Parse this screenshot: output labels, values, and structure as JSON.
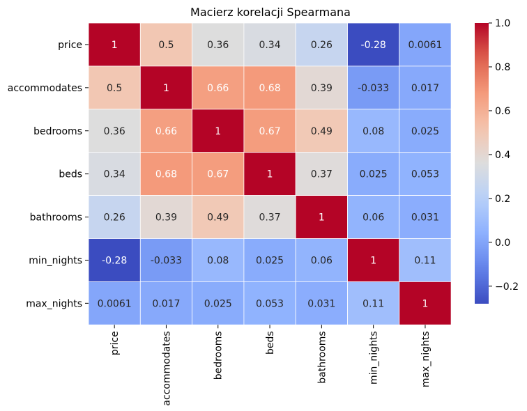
{
  "chart_data": {
    "type": "heatmap",
    "title": "Macierz korelacji Spearmana",
    "row_labels": [
      "price",
      "accommodates",
      "bedrooms",
      "beds",
      "bathrooms",
      "min_nights",
      "max_nights"
    ],
    "col_labels": [
      "price",
      "accommodates",
      "bedrooms",
      "beds",
      "bathrooms",
      "min_nights",
      "max_nights"
    ],
    "values": [
      [
        1,
        0.5,
        0.36,
        0.34,
        0.26,
        -0.28,
        0.0061
      ],
      [
        0.5,
        1,
        0.66,
        0.68,
        0.39,
        -0.033,
        0.017
      ],
      [
        0.36,
        0.66,
        1,
        0.67,
        0.49,
        0.08,
        0.025
      ],
      [
        0.34,
        0.68,
        0.67,
        1,
        0.37,
        0.025,
        0.053
      ],
      [
        0.26,
        0.39,
        0.49,
        0.37,
        1,
        0.06,
        0.031
      ],
      [
        -0.28,
        -0.033,
        0.08,
        0.025,
        0.06,
        1,
        0.11
      ],
      [
        0.0061,
        0.017,
        0.025,
        0.053,
        0.031,
        0.11,
        1
      ]
    ],
    "cell_labels": [
      [
        "1",
        "0.5",
        "0.36",
        "0.34",
        "0.26",
        "-0.28",
        "0.0061"
      ],
      [
        "0.5",
        "1",
        "0.66",
        "0.68",
        "0.39",
        "-0.033",
        "0.017"
      ],
      [
        "0.36",
        "0.66",
        "1",
        "0.67",
        "0.49",
        "0.08",
        "0.025"
      ],
      [
        "0.34",
        "0.68",
        "0.67",
        "1",
        "0.37",
        "0.025",
        "0.053"
      ],
      [
        "0.26",
        "0.39",
        "0.49",
        "0.37",
        "1",
        "0.06",
        "0.031"
      ],
      [
        "-0.28",
        "-0.033",
        "0.08",
        "0.025",
        "0.06",
        "1",
        "0.11"
      ],
      [
        "0.0061",
        "0.017",
        "0.025",
        "0.053",
        "0.031",
        "0.11",
        "1"
      ]
    ],
    "colormap": "coolwarm",
    "vmin": -0.28,
    "vmax": 1.0,
    "colorbar_ticks": [
      1.0,
      0.8,
      0.6,
      0.4,
      0.2,
      0.0,
      -0.2
    ],
    "colorbar_tick_labels": [
      "1.0",
      "0.8",
      "0.6",
      "0.4",
      "0.2",
      "0.0",
      "−0.2"
    ],
    "xlabel": "",
    "ylabel": "",
    "colors": {
      "cell_border": "#ffffff",
      "text_dark": "#262626",
      "text_light": "#ffffff"
    }
  }
}
